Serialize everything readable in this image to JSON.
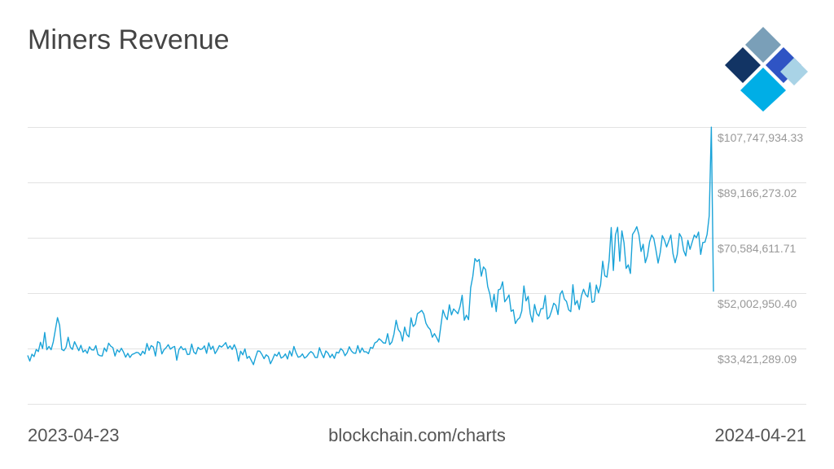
{
  "header": {
    "title": "Miners Revenue"
  },
  "footer": {
    "start_date": "2023-04-23",
    "source": "blockchain.com/charts",
    "end_date": "2024-04-21"
  },
  "logo": {
    "icon": "blockchain-logo-icon",
    "colors": [
      "#7a9fb8",
      "#123464",
      "#2f54c4",
      "#00aee6",
      "#a9d3e6"
    ]
  },
  "colors": {
    "line": "#1aa3d8",
    "grid": "#e3e3e3",
    "tick_text": "#999999"
  },
  "chart_data": {
    "type": "line",
    "title": "Miners Revenue",
    "x_start": "2023-04-23",
    "x_end": "2024-04-21",
    "yticks": [
      33421289.09,
      52002950.4,
      70584611.71,
      89166273.02,
      107747934.33
    ],
    "ytick_labels": [
      "$33,421,289.09",
      "$52,002,950.40",
      "$70,584,611.71",
      "$89,166,273.02",
      "$107,747,934.33"
    ],
    "ylim": [
      14839627.78,
      107747934.33
    ],
    "grid": true,
    "series": [
      {
        "values": [
          31.1,
          29.2,
          31.5,
          30.7,
          33.1,
          32.4,
          35.5,
          33.4,
          38.8,
          33.0,
          34.1,
          33.0,
          35.6,
          39.7,
          43.8,
          41.2,
          33.1,
          32.7,
          33.8,
          37.2,
          33.9,
          33.1,
          35.7,
          34.2,
          32.7,
          34.5,
          32.2,
          32.9,
          31.8,
          34.0,
          33.0,
          32.9,
          34.4,
          31.4,
          31.0,
          30.9,
          33.6,
          32.4,
          35.2,
          34.2,
          33.7,
          30.9,
          33.0,
          32.2,
          33.5,
          32.2,
          30.5,
          31.8,
          30.4,
          31.4,
          31.7,
          32.1,
          32.0,
          31.1,
          32.5,
          31.6,
          35.1,
          32.8,
          34.4,
          33.9,
          30.9,
          35.7,
          35.3,
          31.6,
          33.0,
          33.7,
          34.7,
          33.2,
          33.8,
          34.1,
          29.5,
          33.0,
          34.1,
          33.0,
          33.4,
          31.4,
          31.5,
          34.9,
          32.2,
          31.6,
          33.8,
          33.1,
          33.3,
          34.3,
          31.8,
          35.3,
          33.1,
          34.2,
          31.7,
          32.9,
          34.4,
          33.9,
          34.6,
          35.4,
          33.4,
          34.3,
          33.1,
          34.7,
          33.0,
          29.2,
          32.5,
          31.3,
          33.3,
          30.1,
          30.8,
          29.4,
          28.0,
          30.5,
          32.6,
          32.5,
          31.4,
          30.0,
          31.3,
          30.7,
          28.3,
          29.8,
          31.5,
          30.9,
          32.2,
          30.2,
          30.6,
          31.6,
          29.9,
          32.6,
          30.9,
          34.1,
          32.0,
          30.5,
          30.7,
          31.6,
          30.2,
          30.7,
          31.7,
          32.4,
          31.8,
          30.4,
          30.4,
          33.7,
          31.7,
          30.3,
          32.6,
          31.9,
          30.4,
          31.5,
          30.1,
          32.2,
          31.9,
          33.4,
          32.7,
          31.0,
          32.0,
          34.0,
          32.6,
          31.9,
          31.8,
          34.4,
          32.0,
          33.6,
          32.3,
          32.3,
          31.7,
          33.8,
          33.5,
          35.3,
          35.7,
          36.7,
          36.1,
          35.3,
          35.2,
          38.4,
          34.7,
          35.6,
          38.3,
          42.9,
          39.8,
          38.8,
          35.9,
          40.6,
          38.1,
          37.3,
          43.7,
          40.8,
          41.6,
          45.1,
          45.6,
          46.2,
          45.0,
          41.9,
          40.6,
          39.8,
          37.2,
          38.4,
          37.1,
          35.6,
          41.0,
          46.3,
          44.3,
          43.1,
          48.1,
          44.7,
          46.7,
          45.9,
          45.1,
          47.5,
          51.3,
          42.9,
          44.6,
          43.1,
          53.8,
          57.6,
          63.6,
          62.6,
          63.3,
          57.7,
          60.8,
          59.9,
          54.2,
          51.7,
          47.3,
          51.6,
          45.8,
          53.1,
          53.4,
          55.8,
          49.1,
          50.1,
          51.4,
          45.9,
          46.4,
          41.8,
          43.1,
          43.7,
          46.0,
          54.4,
          49.4,
          50.9,
          45.0,
          42.3,
          48.2,
          45.2,
          44.3,
          46.8,
          46.8,
          51.2,
          43.3,
          44.0,
          46.1,
          48.6,
          47.9,
          44.8,
          51.6,
          52.8,
          50.0,
          49.2,
          46.4,
          45.8,
          54.8,
          48.1,
          49.5,
          46.5,
          51.1,
          53.3,
          51.5,
          50.7,
          55.5,
          48.9,
          49.2,
          54.7,
          52.1,
          54.8,
          62.7,
          57.8,
          57.4,
          62.9,
          74.0,
          59.6,
          71.6,
          74.1,
          62.7,
          72.9,
          68.9,
          60.3,
          61.5,
          58.6,
          71.7,
          72.8,
          74.3,
          71.6,
          66.0,
          68.4,
          62.2,
          64.5,
          69.2,
          71.5,
          70.3,
          66.4,
          62.1,
          65.6,
          71.3,
          69.8,
          67.5,
          69.5,
          71.5,
          65.2,
          62.2,
          65.0,
          72.0,
          70.7,
          66.3,
          64.5,
          69.7,
          66.7,
          69.1,
          71.5,
          70.6,
          72.5,
          65.0,
          69.0,
          69.1,
          71.7,
          77.9,
          107.7,
          52.5
        ]
      }
    ]
  }
}
